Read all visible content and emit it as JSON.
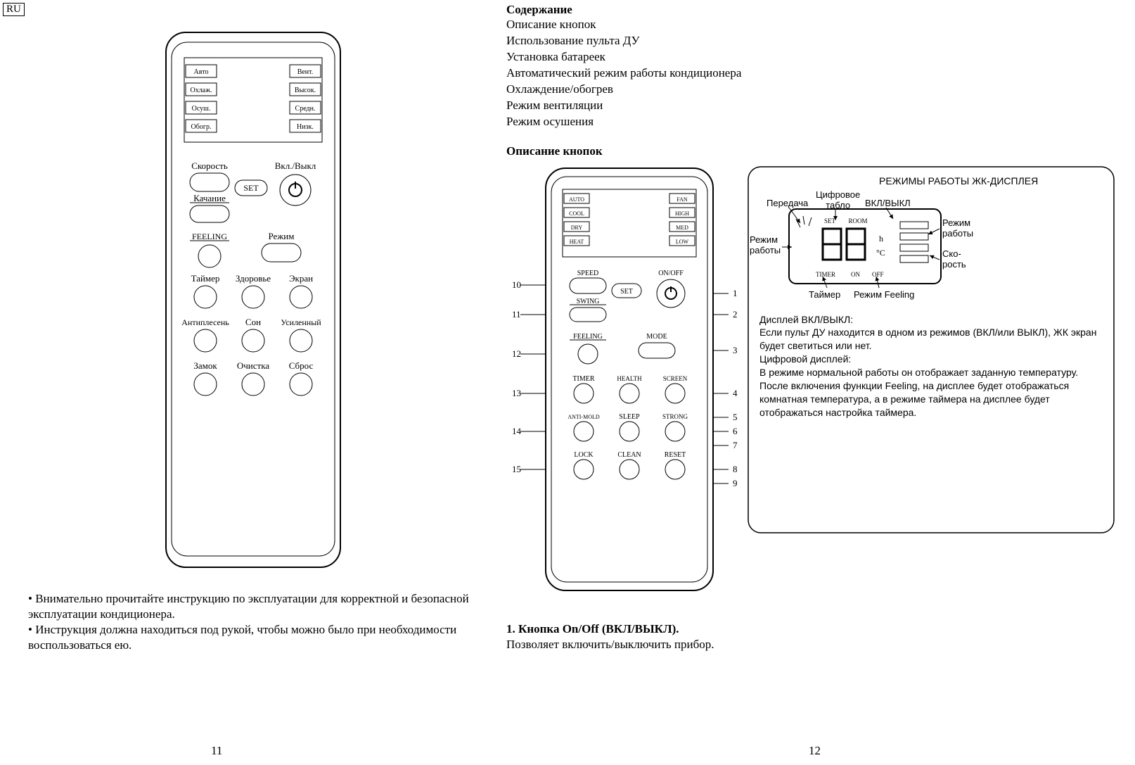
{
  "lang_tag": "RU",
  "left": {
    "remote": {
      "lcd_left": [
        "Авто",
        "Охлаж.",
        "Осуш.",
        "Обогр."
      ],
      "lcd_right": [
        "Вент.",
        "Высок.",
        "Средн.",
        "Низк."
      ],
      "row1": {
        "speed": "Скорость",
        "onoff": "Вкл./Выкл"
      },
      "row1b": {
        "swing": "Качание",
        "set": "SET"
      },
      "row2": {
        "feeling": "FEELING",
        "mode": "Режим"
      },
      "row3": {
        "timer": "Таймер",
        "health": "Здоровье",
        "screen": "Экран"
      },
      "row4": {
        "antimold": "Антиплесень",
        "sleep": "Сон",
        "strong": "Усиленный"
      },
      "row5": {
        "lock": "Замок",
        "clean": "Очистка",
        "reset": "Сброс"
      }
    },
    "bullet1": "• Внимательно прочитайте инструкцию по эксплуатации для корректной и безопасной эксплуатации кондиционера.",
    "bullet2": "• Инструкция должна находиться под рукой, чтобы можно было при необходимости воспользоваться ею.",
    "page_num": "11"
  },
  "right": {
    "toc_title": "Содержание",
    "toc": [
      "Описание кнопок",
      "Использование пульта ДУ",
      "Установка батареек",
      "Автоматический режим работы кондиционера",
      "Охлаждение/обогрев",
      "Режим вентиляции",
      "Режим осушения"
    ],
    "section_title": "Описание кнопок",
    "remote": {
      "lcd_left": [
        "AUTO",
        "COOL",
        "DRY",
        "HEAT"
      ],
      "lcd_right": [
        "FAN",
        "HIGH",
        "MED",
        "LOW"
      ],
      "row1": {
        "speed": "SPEED",
        "onoff": "ON/OFF"
      },
      "row1b": {
        "swing": "SWING",
        "set": "SET"
      },
      "row2": {
        "feeling": "FEELING",
        "mode": "MODE"
      },
      "row3": {
        "timer": "TIMER",
        "health": "HEALTH",
        "screen": "SCREEN"
      },
      "row4": {
        "antimold": "ANTI-MOLD",
        "sleep": "SLEEP",
        "strong": "STRONG"
      },
      "row5": {
        "lock": "LOCK",
        "clean": "CLEAN",
        "reset": "RESET"
      }
    },
    "callouts_left": [
      "10",
      "11",
      "12",
      "13",
      "14",
      "15"
    ],
    "callouts_right": [
      "1",
      "2",
      "3",
      "4",
      "5",
      "6",
      "7",
      "8",
      "9"
    ],
    "lcd_title": "РЕЖИМЫ РАБОТЫ ЖК-ДИСПЛЕЯ",
    "lcd_labels": {
      "transmit": "Передача",
      "digital": "Цифровое\nтабло",
      "onoff": "ВКЛ/ВЫКЛ",
      "mode_left": "Режим\nработы",
      "mode_right": "Режим\nработы",
      "speed": "Ско-\nрость",
      "timer": "Таймер",
      "feeling": "Режим Feeling"
    },
    "lcd_inner": {
      "set": "SET",
      "room": "ROOM",
      "h": "h",
      "c": "°C",
      "timer": "TIMER",
      "on": "ON",
      "off": "OFF"
    },
    "lcd_text_title": "Дисплей ВКЛ/ВЫКЛ:",
    "lcd_text_1": "Если пульт ДУ находится в одном из режимов (ВКЛ/или ВЫКЛ), ЖК экран будет светиться или нет.",
    "lcd_text_2title": "Цифровой дисплей:",
    "lcd_text_2": "В режиме нормальной работы он отображает заданную температуру. После включения функции Feeling, на дисплее будет отображаться комнатная температура, а в режиме таймера на дисплее будет отображаться настройка таймера.",
    "item1_title": "1. Кнопка On/Off (ВКЛ/ВЫКЛ).",
    "item1_text": "Позволяет включить/выключить прибор.",
    "page_num": "12"
  },
  "colors": {
    "line": "#000000",
    "remote_fill": "#ffffff",
    "lcd_fill": "#d9d9d9",
    "lcd_label_bg": "#ffffff"
  }
}
